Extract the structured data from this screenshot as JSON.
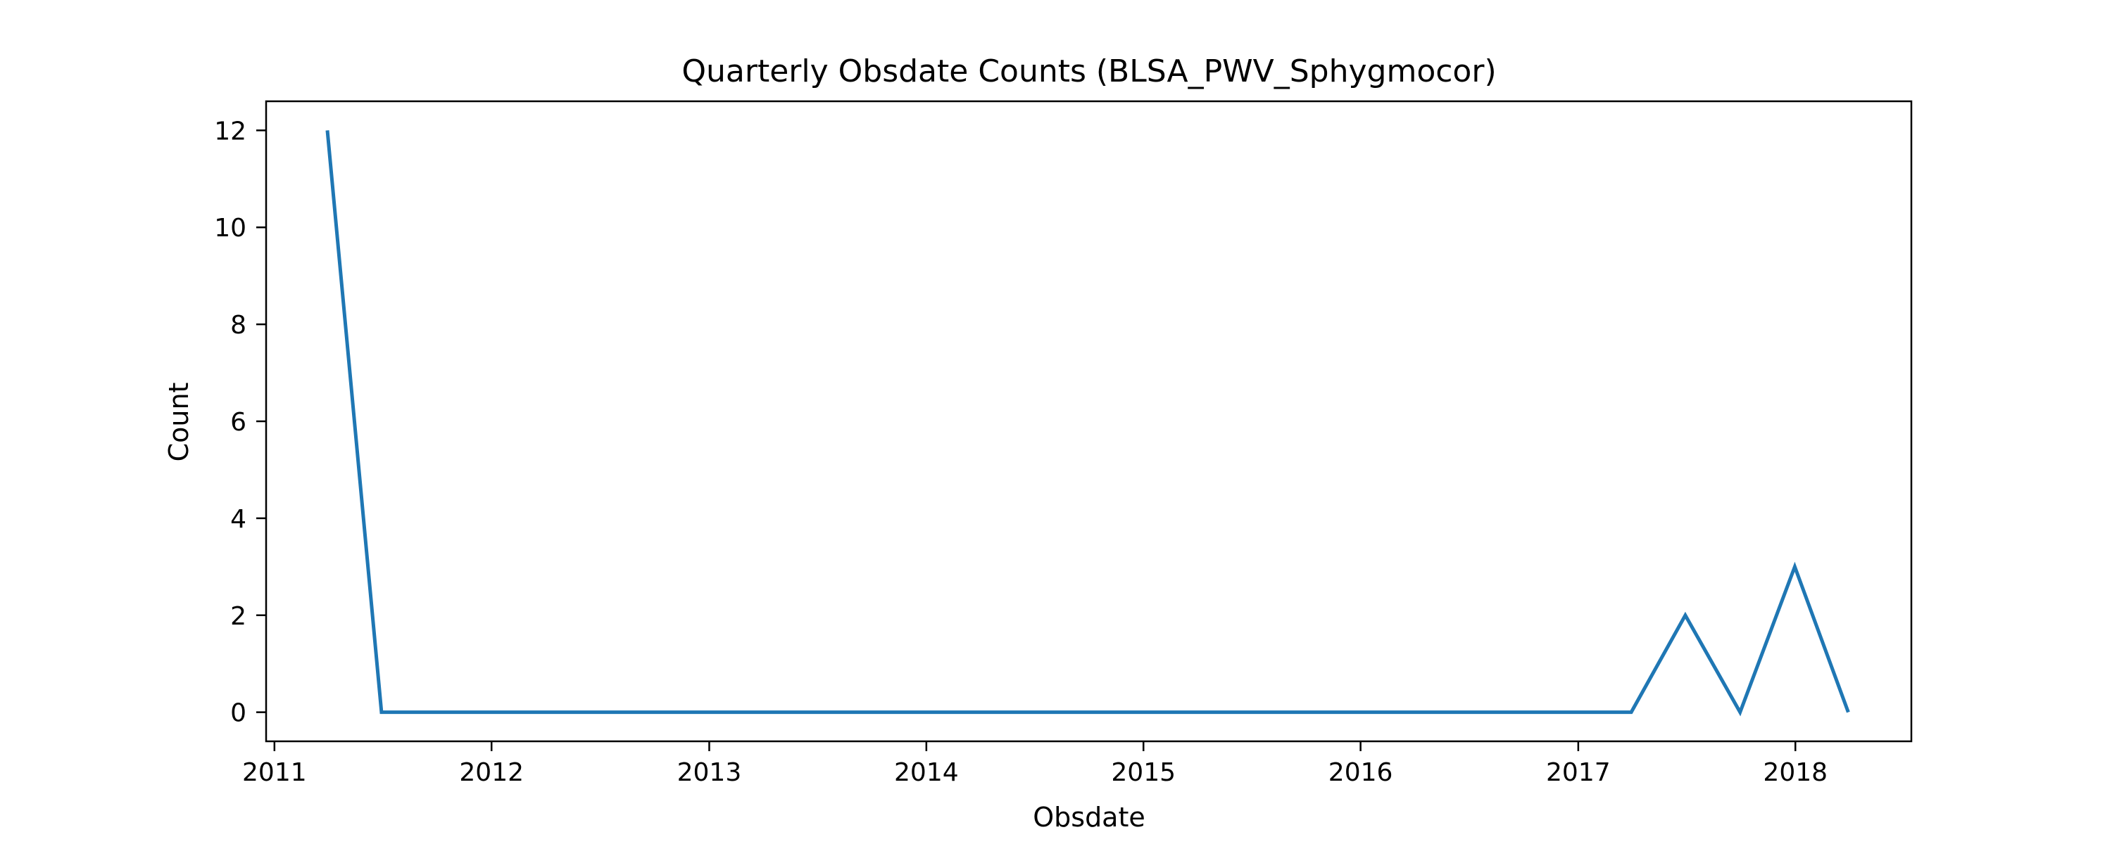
{
  "chart_data": {
    "type": "line",
    "title": "Quarterly Obsdate Counts (BLSA_PWV_Sphygmocor)",
    "xlabel": "Obsdate",
    "ylabel": "Count",
    "x_ticks": [
      "2011",
      "2012",
      "2013",
      "2014",
      "2015",
      "2016",
      "2017",
      "2018"
    ],
    "y_ticks": [
      "0",
      "2",
      "4",
      "6",
      "8",
      "10",
      "12"
    ],
    "xlim": [
      "2010-12-18",
      "2018-07-15"
    ],
    "ylim": [
      -0.6,
      12.6
    ],
    "grid": false,
    "series": [
      {
        "color": "#1f77b4",
        "x": [
          "2011-03-31",
          "2011-06-30",
          "2011-09-30",
          "2011-12-31",
          "2012-03-31",
          "2012-06-30",
          "2012-09-30",
          "2012-12-31",
          "2013-03-31",
          "2013-06-30",
          "2013-09-30",
          "2013-12-31",
          "2014-03-31",
          "2014-06-30",
          "2014-09-30",
          "2014-12-31",
          "2015-03-31",
          "2015-06-30",
          "2015-09-30",
          "2015-12-31",
          "2016-03-31",
          "2016-06-30",
          "2016-09-30",
          "2016-12-31",
          "2017-03-31",
          "2017-06-30",
          "2017-09-30",
          "2017-12-31",
          "2018-03-31"
        ],
        "y": [
          12,
          0,
          0,
          0,
          0,
          0,
          0,
          0,
          0,
          0,
          0,
          0,
          0,
          0,
          0,
          0,
          0,
          0,
          0,
          0,
          0,
          0,
          0,
          0,
          0,
          2,
          0,
          3,
          0
        ]
      }
    ]
  }
}
